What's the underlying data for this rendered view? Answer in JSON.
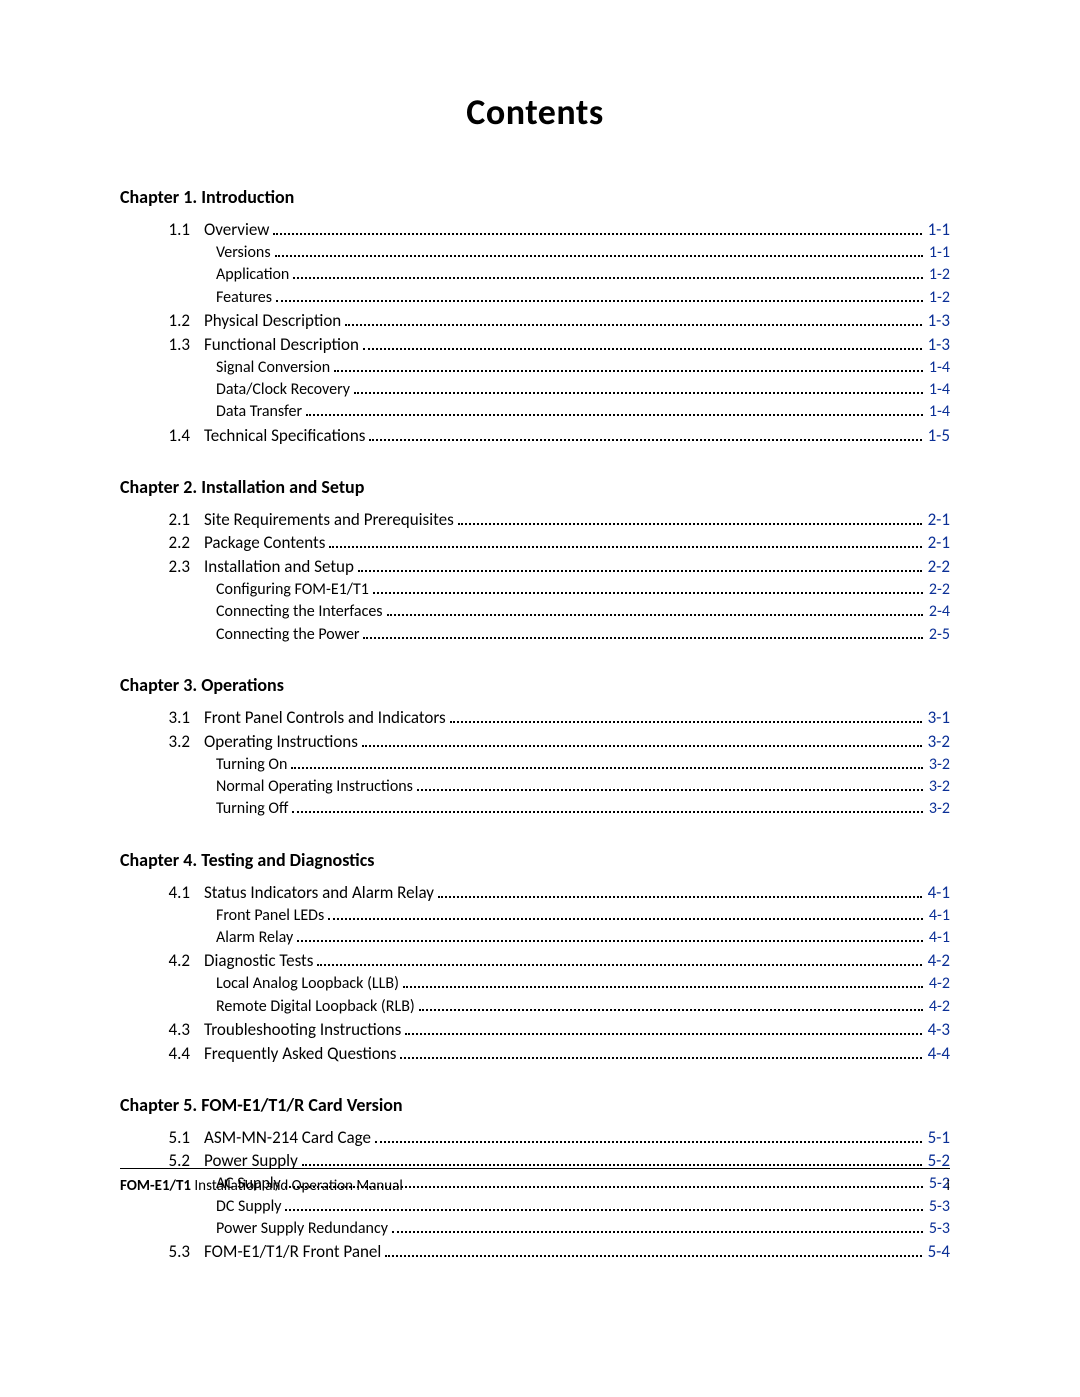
{
  "title": "Contents",
  "page_link_color": "#0a2f96",
  "chapters": [
    {
      "heading": "Chapter 1. Introduction",
      "entries": [
        {
          "num": "1.1",
          "title": "Overview",
          "page": "1-1",
          "level": 1
        },
        {
          "title": "Versions",
          "page": "1-1",
          "level": 2
        },
        {
          "title": "Application",
          "page": "1-2",
          "level": 2
        },
        {
          "title": "Features",
          "page": "1-2",
          "level": 2
        },
        {
          "num": "1.2",
          "title": "Physical Description",
          "page": "1-3",
          "level": 1
        },
        {
          "num": "1.3",
          "title": "Functional Description",
          "page": "1-3",
          "level": 1
        },
        {
          "title": "Signal Conversion",
          "page": "1-4",
          "level": 2
        },
        {
          "title": "Data/Clock Recovery",
          "page": "1-4",
          "level": 2
        },
        {
          "title": "Data Transfer",
          "page": "1-4",
          "level": 2
        },
        {
          "num": "1.4",
          "title": "Technical Specifications",
          "page": "1-5",
          "level": 1
        }
      ]
    },
    {
      "heading": "Chapter 2. Installation and Setup",
      "entries": [
        {
          "num": "2.1",
          "title": "Site Requirements and Prerequisites",
          "page": "2-1",
          "level": 1
        },
        {
          "num": "2.2",
          "title": "Package Contents",
          "page": "2-1",
          "level": 1
        },
        {
          "num": "2.3",
          "title": "Installation and Setup",
          "page": "2-2",
          "level": 1
        },
        {
          "title": "Configuring FOM-E1/T1",
          "page": "2-2",
          "level": 2
        },
        {
          "title": "Connecting the Interfaces",
          "page": "2-4",
          "level": 2
        },
        {
          "title": "Connecting the Power",
          "page": "2-5",
          "level": 2
        }
      ]
    },
    {
      "heading": "Chapter 3. Operations",
      "entries": [
        {
          "num": "3.1",
          "title": "Front Panel Controls and Indicators",
          "page": "3-1",
          "level": 1
        },
        {
          "num": "3.2",
          "title": "Operating Instructions",
          "page": "3-2",
          "level": 1
        },
        {
          "title": "Turning On",
          "page": "3-2",
          "level": 2
        },
        {
          "title": "Normal Operating Instructions",
          "page": "3-2",
          "level": 2
        },
        {
          "title": "Turning Off",
          "page": "3-2",
          "level": 2
        }
      ]
    },
    {
      "heading": "Chapter 4. Testing and Diagnostics",
      "entries": [
        {
          "num": "4.1",
          "title": "Status Indicators and Alarm Relay",
          "page": "4-1",
          "level": 1
        },
        {
          "title": "Front Panel LEDs",
          "page": "4-1",
          "level": 2
        },
        {
          "title": "Alarm Relay",
          "page": "4-1",
          "level": 2
        },
        {
          "num": "4.2",
          "title": "Diagnostic Tests",
          "page": "4-2",
          "level": 1
        },
        {
          "title": "Local Analog Loopback (LLB)",
          "page": "4-2",
          "level": 2
        },
        {
          "title": "Remote Digital Loopback (RLB)",
          "page": "4-2",
          "level": 2
        },
        {
          "num": "4.3",
          "title": "Troubleshooting Instructions",
          "page": "4-3",
          "level": 1
        },
        {
          "num": "4.4",
          "title": "Frequently Asked Questions",
          "page": "4-4",
          "level": 1
        }
      ]
    },
    {
      "heading": "Chapter 5. FOM-E1/T1/R Card Version",
      "entries": [
        {
          "num": "5.1",
          "title": "ASM-MN-214 Card Cage",
          "page": "5-1",
          "level": 1
        },
        {
          "num": "5.2",
          "title": "Power Supply",
          "page": "5-2",
          "level": 1
        },
        {
          "title": "AC Supply",
          "page": "5-2",
          "level": 2
        },
        {
          "title": "DC Supply",
          "page": "5-3",
          "level": 2
        },
        {
          "title": "Power Supply Redundancy",
          "page": "5-3",
          "level": 2
        },
        {
          "num": "5.3",
          "title": "FOM-E1/T1/R Front Panel",
          "page": "5-4",
          "level": 1
        }
      ]
    }
  ],
  "footer": {
    "left_bold": "FOM-E1/T1",
    "left_rest": " Installation and Operation Manual",
    "right": "i"
  }
}
